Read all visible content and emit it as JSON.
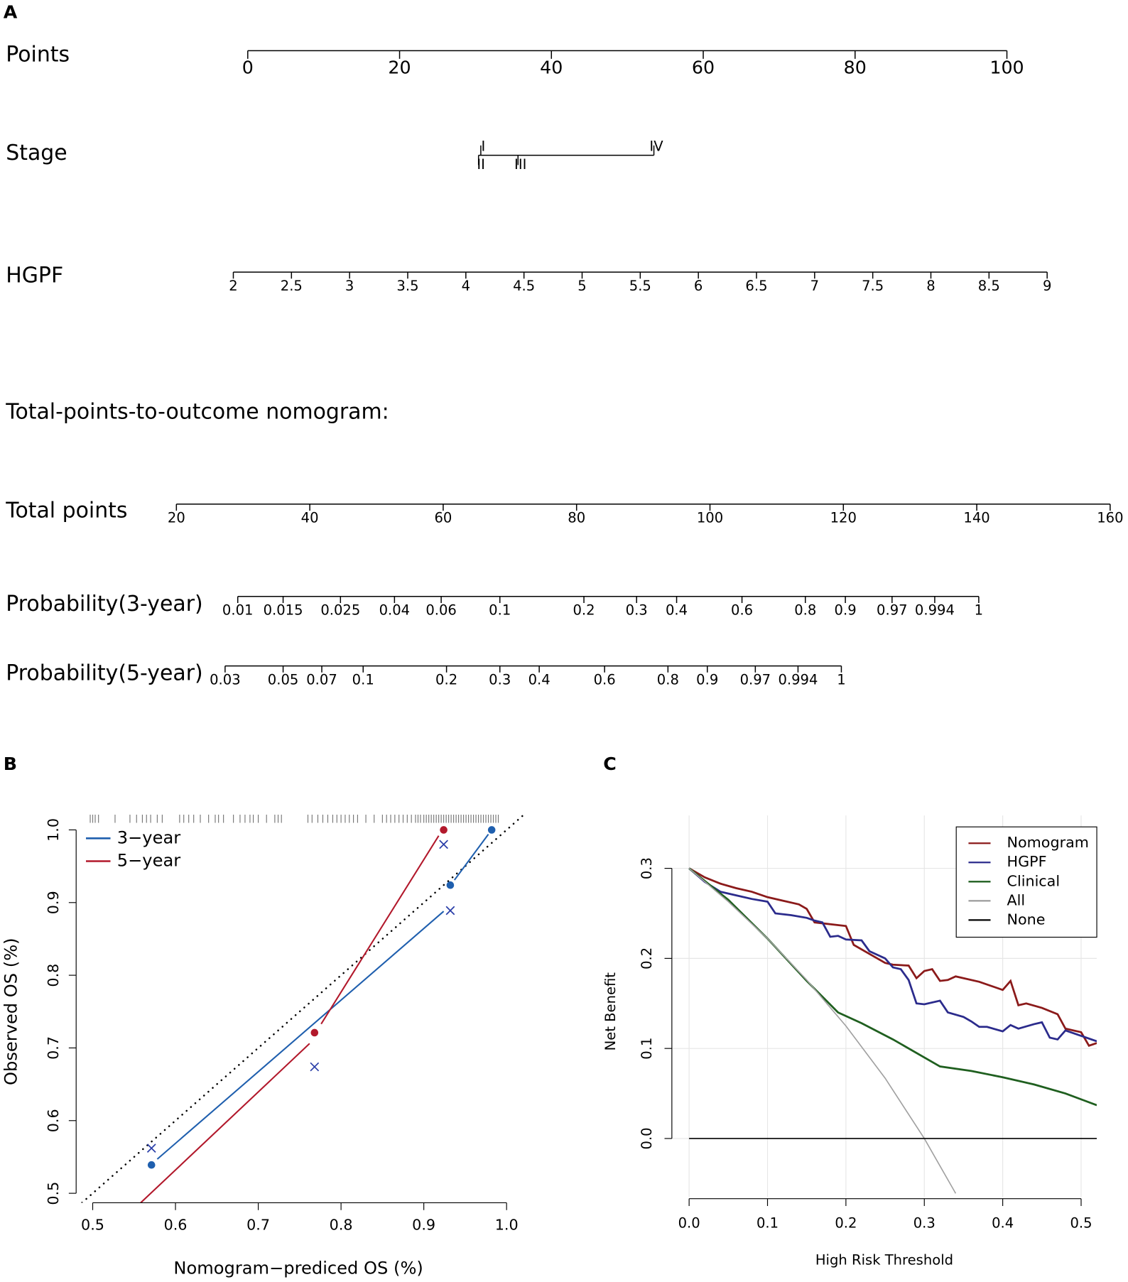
{
  "chart_data": [
    {
      "type": "nomogram",
      "panel": "A",
      "subtitle": "Total-points-to-outcome nomogram:",
      "rows": [
        {
          "name": "Points",
          "lim": [
            0,
            100
          ],
          "ticks": [
            0,
            20,
            40,
            60,
            80,
            100
          ]
        },
        {
          "name": "Stage",
          "ticks": [
            "I",
            "II",
            "III",
            "IV"
          ],
          "points": [
            30.7,
            30.4,
            35.6,
            53.5
          ],
          "label_side": [
            "top",
            "bottom",
            "bottom",
            "top"
          ]
        },
        {
          "name": "HGPF",
          "lim": [
            2,
            9
          ],
          "points_lim": [
            -1.9,
            105.3
          ],
          "ticks": [
            2,
            2.5,
            3,
            3.5,
            4,
            4.5,
            5,
            5.5,
            6,
            6.5,
            7,
            7.5,
            8,
            8.5,
            9
          ]
        },
        {
          "name": "Total points",
          "lim": [
            20,
            160
          ],
          "points_lim": [
            -9.4,
            113.6
          ],
          "ticks": [
            20,
            40,
            60,
            80,
            100,
            120,
            140,
            160
          ]
        },
        {
          "name": "Probability(3-year)",
          "ticks": [
            0.01,
            0.015,
            0.025,
            0.04,
            0.06,
            0.1,
            0.2,
            0.3,
            0.4,
            0.6,
            0.8,
            0.9,
            0.97,
            0.994,
            1
          ],
          "total_points": [
            29.2,
            36.0,
            44.6,
            52.7,
            59.7,
            68.5,
            81.1,
            89.0,
            95.0,
            104.8,
            114.3,
            120.3,
            127.3,
            133.7,
            140.3
          ]
        },
        {
          "name": "Probability(5-year)",
          "ticks": [
            0.03,
            0.05,
            0.07,
            0.1,
            0.2,
            0.3,
            0.4,
            0.6,
            0.8,
            0.9,
            0.97,
            0.994,
            1
          ],
          "total_points": [
            27.3,
            36.0,
            41.8,
            48.0,
            60.5,
            68.5,
            74.4,
            84.2,
            93.7,
            99.6,
            106.8,
            113.2,
            119.7
          ]
        }
      ]
    },
    {
      "type": "calibration",
      "panel": "B",
      "xlabel": "Nomogram−prediced OS (%)",
      "ylabel": "Observed OS (%)",
      "xlim": [
        0.48,
        1.02
      ],
      "ylim": [
        0.487,
        1.021
      ],
      "xticks": [
        0.5,
        0.6,
        0.7,
        0.8,
        0.9,
        {
          "value": 1,
          "label": "1.0"
        }
      ],
      "yticks": [
        0.5,
        0.6,
        0.7,
        0.8,
        0.9,
        {
          "value": 1,
          "label": "1.0"
        }
      ],
      "legend": "top-left",
      "rug": [
        0.497,
        0.5,
        0.503,
        0.507,
        0.527,
        0.545,
        0.553,
        0.56,
        0.565,
        0.57,
        0.578,
        0.584,
        0.605,
        0.61,
        0.616,
        0.622,
        0.63,
        0.64,
        0.648,
        0.652,
        0.658,
        0.67,
        0.678,
        0.684,
        0.69,
        0.694,
        0.7,
        0.71,
        0.72,
        0.724,
        0.728,
        0.76,
        0.765,
        0.772,
        0.778,
        0.784,
        0.79,
        0.795,
        0.8,
        0.805,
        0.81,
        0.815,
        0.82,
        0.83,
        0.84,
        0.85,
        0.855,
        0.86,
        0.865,
        0.87,
        0.875,
        0.88,
        0.885,
        0.89,
        0.893,
        0.896,
        0.9,
        0.903,
        0.906,
        0.909,
        0.912,
        0.915,
        0.918,
        0.921,
        0.924,
        0.927,
        0.93,
        0.933,
        0.936,
        0.939,
        0.942,
        0.945,
        0.948,
        0.951,
        0.954,
        0.957,
        0.96,
        0.963,
        0.966,
        0.969,
        0.972,
        0.975,
        0.978,
        0.981,
        0.984,
        0.987,
        0.99
      ],
      "series": [
        {
          "name": "3−year",
          "color": "#1f5fae",
          "points_x": [
            0.571,
            0.932,
            0.982
          ],
          "points_y": [
            0.539,
            0.924,
            1.0
          ],
          "line_x": [
            0.578,
            0.924,
            null,
            0.937,
            0.978
          ],
          "line_y": [
            0.547,
            0.888,
            null,
            0.931,
            0.994
          ]
        },
        {
          "name": "5−year",
          "color": "#b2182b",
          "points_x": [
            0.768,
            0.924
          ],
          "points_y": [
            0.721,
            1.0
          ],
          "line_x": [
            0.558,
            0.762,
            null,
            0.776,
            0.918
          ],
          "line_y": [
            0.487,
            0.706,
            null,
            0.733,
            0.992
          ]
        }
      ],
      "crosses": {
        "color": "#2a3ea8",
        "x": [
          0.571,
          0.768,
          0.924,
          0.932
        ],
        "y": [
          0.562,
          0.674,
          0.98,
          0.889
        ]
      }
    },
    {
      "type": "line",
      "panel": "C",
      "xlabel": "High Risk Threshold",
      "ylabel": "Net Benefit",
      "xlim": [
        -0.022,
        0.52
      ],
      "ylim": [
        -0.065,
        0.366
      ],
      "grid": true,
      "legend": "top-right",
      "xticks": [
        {
          "value": 0,
          "label": "0.0"
        },
        0.1,
        0.2,
        0.3,
        0.4,
        0.5
      ],
      "yticks": [
        {
          "value": 0,
          "label": "0.0"
        },
        0.1,
        0.2,
        0.3
      ],
      "series": [
        {
          "name": "Nomogram",
          "color": "#8b1a1a",
          "x": [
            0,
            0.02,
            0.04,
            0.06,
            0.08,
            0.1,
            0.12,
            0.14,
            0.15,
            0.16,
            0.18,
            0.2,
            0.21,
            0.23,
            0.25,
            0.26,
            0.28,
            0.29,
            0.3,
            0.31,
            0.32,
            0.33,
            0.34,
            0.37,
            0.4,
            0.41,
            0.42,
            0.43,
            0.45,
            0.47,
            0.48,
            0.5,
            0.51,
            0.52
          ],
          "values": [
            0.3,
            0.29,
            0.283,
            0.278,
            0.274,
            0.268,
            0.264,
            0.26,
            0.255,
            0.24,
            0.238,
            0.236,
            0.215,
            0.205,
            0.195,
            0.193,
            0.192,
            0.178,
            0.186,
            0.188,
            0.175,
            0.176,
            0.18,
            0.174,
            0.165,
            0.175,
            0.148,
            0.15,
            0.145,
            0.138,
            0.122,
            0.118,
            0.103,
            0.106
          ]
        },
        {
          "name": "HGPF",
          "color": "#2b2b8c",
          "x": [
            0,
            0.02,
            0.04,
            0.06,
            0.08,
            0.1,
            0.11,
            0.13,
            0.15,
            0.16,
            0.17,
            0.18,
            0.19,
            0.2,
            0.22,
            0.23,
            0.25,
            0.26,
            0.27,
            0.28,
            0.29,
            0.3,
            0.32,
            0.33,
            0.35,
            0.36,
            0.37,
            0.38,
            0.4,
            0.41,
            0.42,
            0.44,
            0.45,
            0.46,
            0.47,
            0.48,
            0.5,
            0.52
          ],
          "values": [
            0.3,
            0.285,
            0.274,
            0.27,
            0.266,
            0.263,
            0.25,
            0.248,
            0.245,
            0.242,
            0.24,
            0.224,
            0.225,
            0.221,
            0.22,
            0.208,
            0.2,
            0.19,
            0.188,
            0.176,
            0.15,
            0.149,
            0.153,
            0.14,
            0.135,
            0.13,
            0.124,
            0.124,
            0.119,
            0.126,
            0.122,
            0.127,
            0.129,
            0.112,
            0.11,
            0.12,
            0.114,
            0.108
          ]
        },
        {
          "name": "Clinical",
          "color": "#1f5f1f",
          "x": [
            0,
            0.05,
            0.1,
            0.15,
            0.19,
            0.22,
            0.26,
            0.32,
            0.36,
            0.4,
            0.44,
            0.48,
            0.52
          ],
          "values": [
            0.3,
            0.265,
            0.222,
            0.175,
            0.14,
            0.128,
            0.11,
            0.08,
            0.075,
            0.068,
            0.06,
            0.05,
            0.037
          ]
        },
        {
          "name": "All",
          "color": "#a0a0a0",
          "x": [
            0,
            0.05,
            0.1,
            0.15,
            0.2,
            0.25,
            0.3,
            0.34
          ],
          "values": [
            0.3,
            0.263,
            0.222,
            0.176,
            0.125,
            0.067,
            0,
            -0.061
          ]
        },
        {
          "name": "None",
          "color": "#000000",
          "x": [
            0,
            0.52
          ],
          "values": [
            0,
            0
          ]
        }
      ]
    }
  ]
}
